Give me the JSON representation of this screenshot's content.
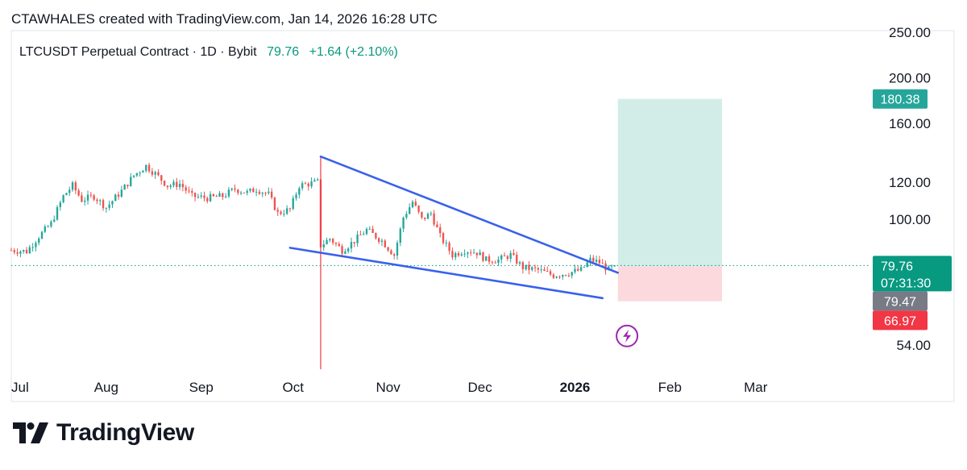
{
  "header": {
    "text": "CTAWHALES created with TradingView.com, Jan 14, 2026 16:28 UTC"
  },
  "legend": {
    "symbol": "LTCUSDT Perpetual Contract · 1D · Bybit",
    "price": "79.76",
    "change": "+1.64 (+2.10%)"
  },
  "brand": {
    "name": "TradingView"
  },
  "colors": {
    "up": "#26a69a",
    "down": "#ef5350",
    "trendline": "#3861ec",
    "target_zone": "#d2ede7",
    "stop_zone": "#fbd9dd",
    "price_line": "#089981",
    "grid_border": "#e0e3eb",
    "event_line": "#f23645"
  },
  "chart_data": {
    "type": "candlestick",
    "y_scale": "log",
    "ylim": [
      48,
      252
    ],
    "y_ticks": [
      {
        "value": 250,
        "label": "250.00"
      },
      {
        "value": 200,
        "label": "200.00"
      },
      {
        "value": 160,
        "label": "160.00"
      },
      {
        "value": 120,
        "label": "120.00"
      },
      {
        "value": 100,
        "label": "100.00"
      },
      {
        "value": 54,
        "label": "54.00"
      }
    ],
    "x_range": [
      "2025-07-01",
      "2026-03-20"
    ],
    "x_ticks": [
      {
        "date": "2025-07-01",
        "label": "Jul",
        "bold": false
      },
      {
        "date": "2025-08-01",
        "label": "Aug",
        "bold": false
      },
      {
        "date": "2025-09-01",
        "label": "Sep",
        "bold": false
      },
      {
        "date": "2025-10-01",
        "label": "Oct",
        "bold": false
      },
      {
        "date": "2025-11-01",
        "label": "Nov",
        "bold": false
      },
      {
        "date": "2025-12-01",
        "label": "Dec",
        "bold": false
      },
      {
        "date": "2026-01-01",
        "label": "2026",
        "bold": true
      },
      {
        "date": "2026-02-01",
        "label": "Feb",
        "bold": false
      },
      {
        "date": "2026-03-01",
        "label": "Mar",
        "bold": false
      }
    ],
    "close_path": [
      [
        "2025-07-01",
        86
      ],
      [
        "2025-07-06",
        85.5
      ],
      [
        "2025-07-10",
        92
      ],
      [
        "2025-07-14",
        98
      ],
      [
        "2025-07-18",
        112
      ],
      [
        "2025-07-21",
        118
      ],
      [
        "2025-07-24",
        110
      ],
      [
        "2025-07-28",
        112
      ],
      [
        "2025-08-01",
        106
      ],
      [
        "2025-08-06",
        115
      ],
      [
        "2025-08-10",
        124
      ],
      [
        "2025-08-14",
        130
      ],
      [
        "2025-08-17",
        125
      ],
      [
        "2025-08-21",
        118
      ],
      [
        "2025-08-25",
        119
      ],
      [
        "2025-08-29",
        112
      ],
      [
        "2025-09-03",
        111
      ],
      [
        "2025-09-08",
        112
      ],
      [
        "2025-09-12",
        116
      ],
      [
        "2025-09-16",
        114
      ],
      [
        "2025-09-19",
        116
      ],
      [
        "2025-09-23",
        113
      ],
      [
        "2025-09-26",
        103
      ],
      [
        "2025-09-30",
        105
      ],
      [
        "2025-10-03",
        118
      ],
      [
        "2025-10-06",
        119
      ],
      [
        "2025-10-09",
        120
      ],
      [
        "2025-10-10",
        88
      ],
      [
        "2025-10-13",
        91
      ],
      [
        "2025-10-17",
        86
      ],
      [
        "2025-10-21",
        90
      ],
      [
        "2025-10-25",
        95
      ],
      [
        "2025-10-30",
        90
      ],
      [
        "2025-11-03",
        84
      ],
      [
        "2025-11-06",
        101
      ],
      [
        "2025-11-09",
        109
      ],
      [
        "2025-11-12",
        100
      ],
      [
        "2025-11-15",
        103
      ],
      [
        "2025-11-18",
        92
      ],
      [
        "2025-11-22",
        84
      ],
      [
        "2025-11-26",
        86
      ],
      [
        "2025-11-30",
        85
      ],
      [
        "2025-12-03",
        82
      ],
      [
        "2025-12-07",
        82
      ],
      [
        "2025-12-11",
        84
      ],
      [
        "2025-12-15",
        79
      ],
      [
        "2025-12-20",
        78
      ],
      [
        "2025-12-25",
        76
      ],
      [
        "2025-12-30",
        77
      ],
      [
        "2026-01-03",
        78
      ],
      [
        "2026-01-06",
        82
      ],
      [
        "2026-01-09",
        81
      ],
      [
        "2026-01-12",
        78.1
      ],
      [
        "2026-01-14",
        79.76
      ]
    ],
    "event_line": {
      "date": "2025-10-10"
    },
    "trendlines": [
      {
        "name": "upper",
        "from": [
          "2025-10-10",
          136
        ],
        "to": [
          "2026-01-15",
          77
        ]
      },
      {
        "name": "lower",
        "from": [
          "2025-09-30",
          87
        ],
        "to": [
          "2026-01-10",
          68
        ]
      }
    ],
    "position": {
      "x_from": "2026-01-15",
      "x_to": "2026-02-18",
      "entry": 79.47,
      "target": 180.38,
      "stop": 66.97
    },
    "last_price": {
      "value": 79.76,
      "label": "79.76",
      "countdown": "07:31:30"
    },
    "price_labels": [
      {
        "name": "target",
        "label": "180.38",
        "value": 180.38
      },
      {
        "name": "entry",
        "label": "79.47",
        "value": 79.47
      },
      {
        "name": "stop",
        "label": "66.97",
        "value": 66.97
      }
    ],
    "marker": {
      "date": "2026-01-18",
      "value": 56.5,
      "icon": "lightning-icon"
    }
  }
}
